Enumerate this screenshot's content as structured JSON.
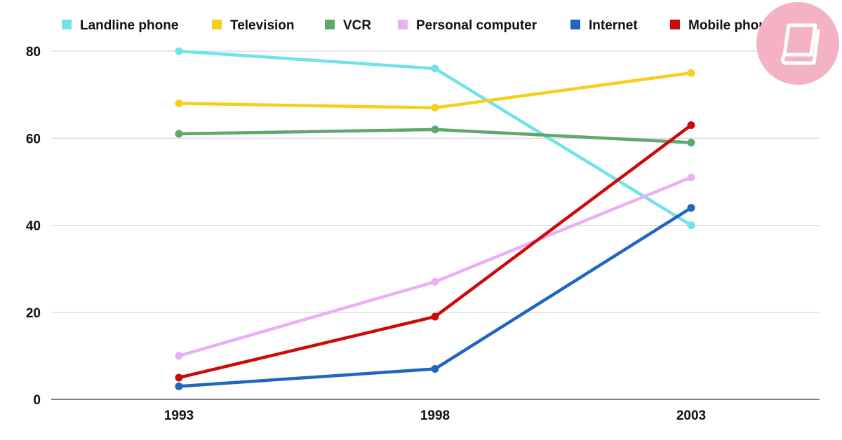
{
  "chart_data": {
    "type": "line",
    "title": "",
    "xlabel": "",
    "ylabel": "",
    "categories": [
      "1993",
      "1998",
      "2003"
    ],
    "ylim": [
      0,
      80
    ],
    "yticks": [
      "0",
      "20",
      "40",
      "60",
      "80"
    ],
    "grid": "horizontal",
    "legend_position": "top",
    "series": [
      {
        "name": "Landline phone",
        "color": "#6ee3e8",
        "values": [
          80,
          76,
          40
        ]
      },
      {
        "name": "Television",
        "color": "#f5cf1a",
        "values": [
          68,
          67,
          75
        ]
      },
      {
        "name": "VCR",
        "color": "#5ea86a",
        "values": [
          61,
          62,
          59
        ]
      },
      {
        "name": "Personal computer",
        "color": "#e9b0f5",
        "values": [
          10,
          27,
          51
        ]
      },
      {
        "name": "Internet",
        "color": "#1f66c0",
        "values": [
          3,
          7,
          44
        ]
      },
      {
        "name": "Mobile phone",
        "color": "#cc0a0a",
        "values": [
          5,
          19,
          63
        ]
      }
    ]
  },
  "logo": {
    "icon": "book-icon",
    "color": "#f4b3c4"
  }
}
